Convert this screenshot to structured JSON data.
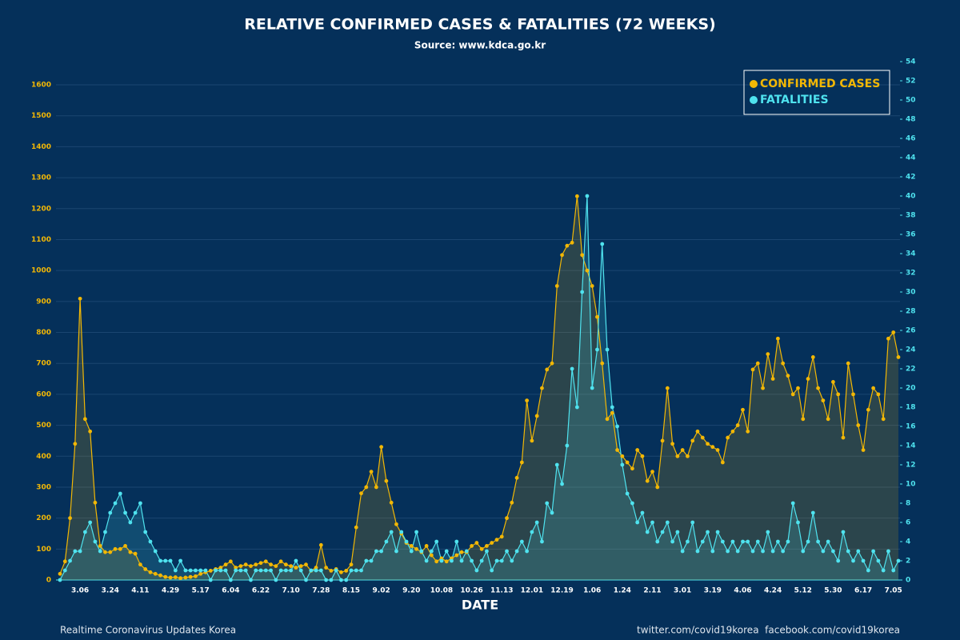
{
  "chart_data": {
    "type": "line",
    "title": "RELATIVE CONFIRMED CASES & FATALITIES (72 WEEKS)",
    "subtitle": "Source: www.kdca.go.kr",
    "x_label": "DATE",
    "legend": "top-right",
    "grid": true,
    "ylim": [
      0,
      1675
    ],
    "yticks": [
      0,
      100,
      200,
      300,
      400,
      500,
      600,
      700,
      800,
      900,
      1000,
      1100,
      1200,
      1300,
      1400,
      1500,
      1600
    ],
    "y2lim": [
      0,
      54
    ],
    "y2ticks": [
      0,
      2,
      4,
      6,
      8,
      10,
      12,
      14,
      16,
      18,
      20,
      22,
      24,
      26,
      28,
      30,
      32,
      34,
      36,
      38,
      40,
      42,
      44,
      46,
      48,
      50,
      52,
      54
    ],
    "categories": [
      null,
      null,
      null,
      null,
      "3.06",
      null,
      null,
      null,
      null,
      null,
      "3.24",
      null,
      null,
      null,
      null,
      null,
      "4.11",
      null,
      null,
      null,
      null,
      null,
      "4.29",
      null,
      null,
      null,
      null,
      null,
      "5.17",
      null,
      null,
      null,
      null,
      null,
      "6.04",
      null,
      null,
      null,
      null,
      null,
      "6.22",
      null,
      null,
      null,
      null,
      null,
      "7.10",
      null,
      null,
      null,
      null,
      null,
      "7.28",
      null,
      null,
      null,
      null,
      null,
      "8.15",
      null,
      null,
      null,
      null,
      null,
      "9.02",
      null,
      null,
      null,
      null,
      null,
      "9.20",
      null,
      null,
      null,
      null,
      null,
      "10.08",
      null,
      null,
      null,
      null,
      null,
      "10.26",
      null,
      null,
      null,
      null,
      null,
      "11.13",
      null,
      null,
      null,
      null,
      null,
      "12.01",
      null,
      null,
      null,
      null,
      null,
      "12.19",
      null,
      null,
      null,
      null,
      null,
      "1.06",
      null,
      null,
      null,
      null,
      null,
      "1.24",
      null,
      null,
      null,
      null,
      null,
      "2.11",
      null,
      null,
      null,
      null,
      null,
      "3.01",
      null,
      null,
      null,
      null,
      null,
      "3.19",
      null,
      null,
      null,
      null,
      null,
      "4.06",
      null,
      null,
      null,
      null,
      null,
      "4.24",
      null,
      null,
      null,
      null,
      null,
      "5.12",
      null,
      null,
      null,
      null,
      null,
      "5.30",
      null,
      null,
      null,
      null,
      null,
      "6.17",
      null,
      null,
      null,
      null,
      null,
      "7.05",
      null
    ],
    "series": [
      {
        "name": "CONFIRMED CASES",
        "color": "#f2b705",
        "axis": "y",
        "values": [
          20,
          60,
          200,
          440,
          909,
          520,
          480,
          250,
          110,
          90,
          90,
          100,
          100,
          110,
          90,
          85,
          50,
          35,
          25,
          20,
          15,
          10,
          8,
          9,
          6,
          8,
          10,
          12,
          20,
          25,
          30,
          35,
          40,
          50,
          60,
          40,
          45,
          50,
          45,
          50,
          55,
          60,
          50,
          45,
          60,
          50,
          45,
          40,
          45,
          50,
          30,
          40,
          113,
          40,
          30,
          35,
          25,
          30,
          50,
          170,
          280,
          300,
          350,
          300,
          430,
          320,
          250,
          180,
          150,
          120,
          110,
          100,
          90,
          110,
          80,
          60,
          70,
          60,
          70,
          80,
          90,
          90,
          110,
          120,
          100,
          110,
          120,
          130,
          140,
          200,
          250,
          330,
          380,
          580,
          450,
          530,
          620,
          680,
          700,
          950,
          1050,
          1080,
          1090,
          1240,
          1050,
          1000,
          950,
          850,
          700,
          520,
          540,
          420,
          400,
          380,
          360,
          420,
          400,
          320,
          350,
          300,
          450,
          620,
          440,
          400,
          420,
          400,
          450,
          480,
          460,
          440,
          430,
          420,
          380,
          460,
          480,
          500,
          550,
          480,
          680,
          700,
          620,
          730,
          650,
          780,
          700,
          660,
          600,
          620,
          520,
          650,
          720,
          620,
          580,
          520,
          640,
          600,
          460,
          700,
          600,
          500,
          420,
          550,
          620,
          600,
          520,
          780,
          800,
          720
        ]
      },
      {
        "name": "FATALITIES",
        "color": "#4fe3ef",
        "axis": "y2",
        "values": [
          0,
          1,
          2,
          3,
          3,
          5,
          6,
          4,
          3,
          5,
          7,
          8,
          9,
          7,
          6,
          7,
          8,
          5,
          4,
          3,
          2,
          2,
          2,
          1,
          2,
          1,
          1,
          1,
          1,
          1,
          0,
          1,
          1,
          1,
          0,
          1,
          1,
          1,
          0,
          1,
          1,
          1,
          1,
          0,
          1,
          1,
          1,
          2,
          1,
          0,
          1,
          1,
          1,
          0,
          0,
          1,
          0,
          0,
          1,
          1,
          1,
          2,
          2,
          3,
          3,
          4,
          5,
          3,
          5,
          4,
          3,
          5,
          3,
          2,
          3,
          4,
          2,
          3,
          2,
          4,
          2,
          3,
          2,
          1,
          2,
          3,
          1,
          2,
          2,
          3,
          2,
          3,
          4,
          3,
          5,
          6,
          4,
          8,
          7,
          12,
          10,
          14,
          22,
          18,
          30,
          40,
          20,
          24,
          35,
          24,
          18,
          16,
          12,
          9,
          8,
          6,
          7,
          5,
          6,
          4,
          5,
          6,
          4,
          5,
          3,
          4,
          6,
          3,
          4,
          5,
          3,
          5,
          4,
          3,
          4,
          3,
          4,
          4,
          3,
          4,
          3,
          5,
          3,
          4,
          3,
          4,
          8,
          6,
          3,
          4,
          7,
          4,
          3,
          4,
          3,
          2,
          5,
          3,
          2,
          3,
          2,
          1,
          3,
          2,
          1,
          3,
          1,
          2
        ]
      }
    ]
  },
  "footer": {
    "left": "Realtime Coronavirus Updates Korea",
    "right": "twitter.com/covid19korea  facebook.com/covid19korea"
  }
}
